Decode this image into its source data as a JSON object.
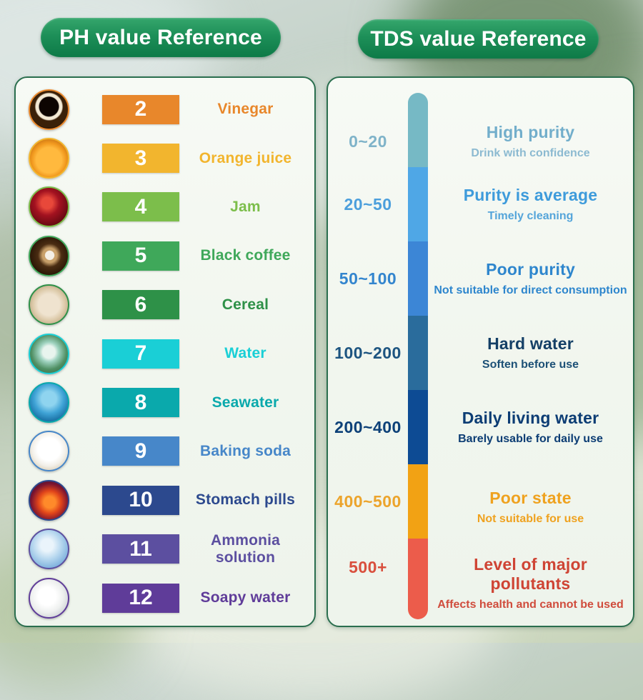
{
  "headers": {
    "ph": "PH value Reference",
    "tds": "TDS value Reference"
  },
  "theme": {
    "header_green_top": "#35a66c",
    "header_green_bottom": "#0d7a47",
    "panel_border": "#2a6e4e",
    "panel_bg": "#f3f8f1"
  },
  "ph_items": [
    {
      "value": "2",
      "label": "Vinegar",
      "color": "#E8872B",
      "photo_icon": "vinegar-bowl-photo",
      "photo": "radial-gradient(circle at 50% 42%, #0d0502 0% 33%, #f3e9d4 36% 45%, #3a2008 49% 72%, #170b03 75%)"
    },
    {
      "value": "3",
      "label": "Orange juice",
      "color": "#F2B52E",
      "photo_icon": "orange-juice-photo",
      "photo": "radial-gradient(circle at 50% 55%, #ffb93e 0% 45%, #f29a1f 60%, #c06a10 85%, #8a4a0c 100%)"
    },
    {
      "value": "4",
      "label": "Jam",
      "color": "#7CBE4B",
      "photo_icon": "strawberry-jam-photo",
      "photo": "radial-gradient(circle at 45% 40%, #e8483a 0% 18%, #a31220 40%, #6e0a14 70%, #450710 100%)"
    },
    {
      "value": "5",
      "label": "Black coffee",
      "color": "#3FA85A",
      "photo_icon": "black-coffee-photo",
      "photo": "radial-gradient(circle at 52% 48%, #f5efe6 0% 16%, #c9a06a 18% 26%, #4a2c12 42%, #241204 78%)"
    },
    {
      "value": "6",
      "label": "Cereal",
      "color": "#2E9148",
      "photo_icon": "cereal-bowl-photo",
      "photo": "radial-gradient(circle at 50% 50%, #efe3cf 0% 40%, #dcc9a8 60%, #b59f7c 85%, #8f7c5c 100%)"
    },
    {
      "value": "7",
      "label": "Water",
      "color": "#1ACFD6",
      "photo_icon": "water-fountain-photo",
      "photo": "radial-gradient(circle at 50% 45%, #e8f4ee 0% 22%, #9fd3c0 35%, #4f8f63 62%, #2d5e3e 100%)"
    },
    {
      "value": "8",
      "label": "Seawater",
      "color": "#0AA9AC",
      "photo_icon": "seawater-photo",
      "photo": "radial-gradient(circle at 50% 40%, #8fd4ef 0% 25%, #3fa3d6 50%, #156a9e 80%, #0b4a74 100%)"
    },
    {
      "value": "9",
      "label": "Baking soda",
      "color": "#4787C9",
      "photo_icon": "baking-soda-photo",
      "photo": "radial-gradient(circle at 50% 45%, #ffffff 0% 40%, #f2efe8 60%, #d9cdb4 82%, #b09a72 100%)"
    },
    {
      "value": "10",
      "label": "Stomach pills",
      "color": "#2C498E",
      "photo_icon": "stomach-photo",
      "photo": "radial-gradient(circle at 52% 55%, #ff8a2a 0% 20%, #e0441a 40%, #7a1430 65%, #1c1430 100%)"
    },
    {
      "value": "11",
      "label": "Ammonia solution",
      "color": "#5C4FA0",
      "photo_icon": "ammonia-bubbles-photo",
      "photo": "radial-gradient(circle at 45% 40%, #eaf4fb 0% 20%, #b8d8ef 45%, #7fb2dd 75%, #5a92c4 100%)"
    },
    {
      "value": "12",
      "label": "Soapy water",
      "color": "#5F3C99",
      "photo_icon": "soap-foam-photo",
      "photo": "radial-gradient(circle at 45% 45%, #ffffff 0% 30%, #eef0ef 55%, #cfd4d6 78%, #a9b0b4 100%)"
    }
  ],
  "tds_rows": [
    {
      "range": "0~20",
      "title": "High purity",
      "subtitle": "Drink with confidence",
      "seg_color": "#76B9C5",
      "range_color": "#7FB3C9",
      "title_color": "#72AECB",
      "sub_color": "#8CBAD1"
    },
    {
      "range": "20~50",
      "title": "Purity is average",
      "subtitle": "Timely cleaning",
      "seg_color": "#4FA7E6",
      "range_color": "#4C9FDC",
      "title_color": "#3E9BDB",
      "sub_color": "#55A5DA"
    },
    {
      "range": "50~100",
      "title": "Poor purity",
      "subtitle": "Not suitable for direct consumption",
      "seg_color": "#3C86D6",
      "range_color": "#3385CE",
      "title_color": "#2E86CD",
      "sub_color": "#2E86CD"
    },
    {
      "range": "100~200",
      "title": "Hard water",
      "subtitle": "Soften before use",
      "seg_color": "#2A6C9C",
      "range_color": "#1D5480",
      "title_color": "#143F66",
      "sub_color": "#1C5076"
    },
    {
      "range": "200~400",
      "title": "Daily living water",
      "subtitle": "Barely usable for daily use",
      "seg_color": "#0D4B94",
      "range_color": "#0D4178",
      "title_color": "#0C3D74",
      "sub_color": "#0C3D74"
    },
    {
      "range": "400~500",
      "title": "Poor state",
      "subtitle": "Not suitable for use",
      "seg_color": "#F2A214",
      "range_color": "#ECA42C",
      "title_color": "#EFA21F",
      "sub_color": "#EFA21F"
    },
    {
      "range": "500+",
      "title": "Level of major pollutants",
      "subtitle": "Affects health and cannot be used",
      "seg_color": "#EC5C4B",
      "range_color": "#D94F3D",
      "title_color": "#CF4434",
      "sub_color": "#D04C3C"
    }
  ]
}
